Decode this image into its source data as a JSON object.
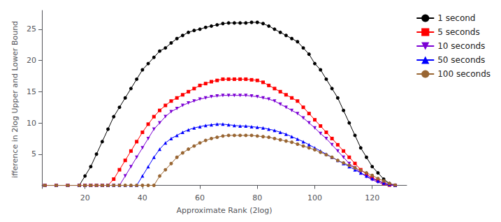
{
  "chart_data": {
    "type": "line",
    "xlabel": "Approximate Rank (2log)",
    "ylabel": "ifference in 2log Upper and Lower Bound",
    "x": [
      6,
      10,
      14,
      18,
      20,
      22,
      24,
      26,
      28,
      30,
      32,
      34,
      36,
      38,
      40,
      42,
      44,
      46,
      48,
      50,
      52,
      54,
      56,
      58,
      60,
      62,
      64,
      66,
      68,
      70,
      72,
      74,
      76,
      78,
      80,
      82,
      84,
      86,
      88,
      90,
      92,
      94,
      96,
      98,
      100,
      102,
      104,
      106,
      108,
      110,
      112,
      114,
      116,
      118,
      120,
      122,
      124,
      126,
      128
    ],
    "series": [
      {
        "name": "1 second",
        "color": "#000000",
        "marker": "circle",
        "values": [
          0,
          0,
          0,
          0,
          1.5,
          3.0,
          5.0,
          7.0,
          9.0,
          11.0,
          12.5,
          14.0,
          15.5,
          17.0,
          18.5,
          19.5,
          20.5,
          21.5,
          22.0,
          22.8,
          23.5,
          24.0,
          24.5,
          24.8,
          25.0,
          25.3,
          25.5,
          25.7,
          25.9,
          26.0,
          26.0,
          26.0,
          26.0,
          26.1,
          26.1,
          25.9,
          25.5,
          25.0,
          24.5,
          24.0,
          23.5,
          23.0,
          22.0,
          21.0,
          19.5,
          18.5,
          17.0,
          15.5,
          14.0,
          12.0,
          10.0,
          8.0,
          6.0,
          4.5,
          3.0,
          2.0,
          1.0,
          0.3,
          0.0
        ]
      },
      {
        "name": "5 seconds",
        "color": "#ff0000",
        "marker": "square",
        "values": [
          0,
          0,
          0,
          0,
          0,
          0,
          0,
          0,
          0,
          1.0,
          2.5,
          4.0,
          5.5,
          7.0,
          8.5,
          9.8,
          11.0,
          12.0,
          12.8,
          13.5,
          14.0,
          14.5,
          15.0,
          15.5,
          16.0,
          16.3,
          16.6,
          16.8,
          17.0,
          17.0,
          17.0,
          17.0,
          17.0,
          16.9,
          16.8,
          16.5,
          16.0,
          15.5,
          15.0,
          14.5,
          14.0,
          13.5,
          12.5,
          11.5,
          10.5,
          9.5,
          8.5,
          7.5,
          6.5,
          5.5,
          4.5,
          3.5,
          2.5,
          1.8,
          1.2,
          0.8,
          0.3,
          0.05,
          0.0
        ]
      },
      {
        "name": "10 seconds",
        "color": "#7B00D4",
        "marker": "triangle_down",
        "values": [
          0,
          0,
          0,
          0,
          0,
          0,
          0,
          0,
          0,
          0,
          0,
          1.5,
          3.0,
          4.5,
          6.0,
          7.5,
          9.0,
          10.0,
          11.0,
          11.8,
          12.3,
          12.8,
          13.2,
          13.5,
          13.8,
          14.0,
          14.2,
          14.3,
          14.4,
          14.4,
          14.4,
          14.4,
          14.4,
          14.3,
          14.2,
          14.0,
          13.8,
          13.5,
          13.0,
          12.5,
          12.0,
          11.5,
          10.8,
          10.0,
          9.2,
          8.3,
          7.5,
          6.5,
          5.5,
          4.5,
          3.5,
          2.8,
          2.0,
          1.4,
          0.9,
          0.5,
          0.2,
          0.05,
          0.0
        ]
      },
      {
        "name": "50 seconds",
        "color": "#0000ff",
        "marker": "triangle_up",
        "values": [
          0,
          0,
          0,
          0,
          0,
          0,
          0,
          0,
          0,
          0,
          0,
          0,
          0,
          0,
          1.5,
          3.0,
          4.5,
          5.8,
          6.8,
          7.5,
          8.0,
          8.5,
          8.9,
          9.2,
          9.4,
          9.6,
          9.7,
          9.8,
          9.8,
          9.7,
          9.6,
          9.5,
          9.5,
          9.4,
          9.3,
          9.2,
          9.0,
          8.8,
          8.5,
          8.2,
          7.8,
          7.4,
          7.0,
          6.5,
          6.0,
          5.5,
          5.0,
          4.5,
          4.0,
          3.5,
          3.0,
          2.5,
          2.0,
          1.5,
          1.1,
          0.7,
          0.4,
          0.15,
          0.0
        ]
      },
      {
        "name": "100 seconds",
        "color": "#996633",
        "marker": "circle",
        "values": [
          0,
          0,
          0,
          0,
          0,
          0,
          0,
          0,
          0,
          0,
          0,
          0,
          0,
          0,
          0,
          0,
          0,
          1.5,
          2.5,
          3.5,
          4.5,
          5.2,
          5.8,
          6.3,
          6.8,
          7.2,
          7.5,
          7.7,
          7.9,
          8.0,
          8.0,
          8.0,
          8.0,
          8.0,
          7.9,
          7.8,
          7.7,
          7.5,
          7.3,
          7.1,
          6.9,
          6.6,
          6.3,
          6.0,
          5.7,
          5.3,
          4.9,
          4.5,
          4.0,
          3.6,
          3.2,
          2.8,
          2.4,
          2.0,
          1.6,
          1.1,
          0.7,
          0.3,
          0.05
        ]
      }
    ],
    "xlim": [
      5,
      132
    ],
    "ylim": [
      -0.5,
      28
    ],
    "xticks": [
      20,
      40,
      60,
      80,
      100,
      120
    ],
    "yticks": [
      5,
      10,
      15,
      20,
      25
    ],
    "grid": false,
    "legend": "right"
  }
}
